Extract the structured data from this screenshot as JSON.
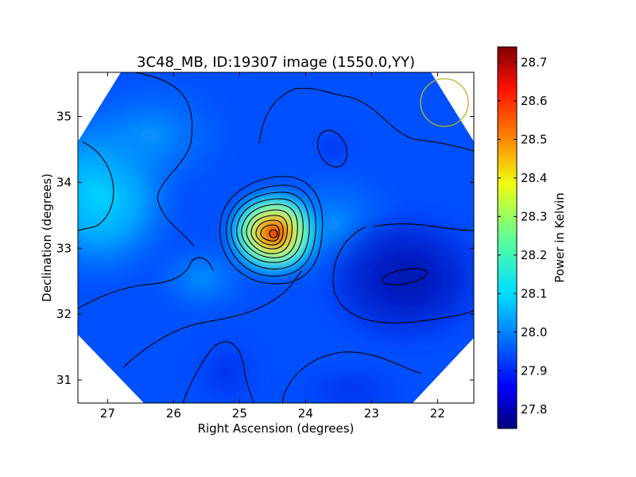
{
  "chart_data": {
    "type": "heatmap",
    "title": "3C48_MB, ID:19307 image (1550.0,YY)",
    "xlabel": "Right Ascension (degrees)",
    "ylabel": "Declination (degrees)",
    "xlim": [
      27.45,
      21.45
    ],
    "ylim": [
      30.65,
      35.67
    ],
    "x_ticks": [
      27,
      26,
      25,
      24,
      23,
      22
    ],
    "x_tick_labels": [
      "27",
      "26",
      "25",
      "24",
      "23",
      "22"
    ],
    "y_ticks": [
      31,
      32,
      33,
      34,
      35
    ],
    "y_tick_labels": [
      "31",
      "32",
      "33",
      "34",
      "35"
    ],
    "colormap": "jet",
    "colorbar": {
      "label": "Power in Kelvin",
      "range": [
        27.75,
        28.74
      ],
      "ticks": [
        27.8,
        27.9,
        28.0,
        28.1,
        28.2,
        28.3,
        28.4,
        28.5,
        28.6,
        28.7
      ],
      "tick_labels": [
        "27.8",
        "27.9",
        "28.0",
        "28.1",
        "28.2",
        "28.3",
        "28.4",
        "28.5",
        "28.6",
        "28.7"
      ]
    },
    "peak": {
      "ra": 24.48,
      "dec": 33.21,
      "value": 28.73
    },
    "beam_circle": {
      "ra": 21.87,
      "dec": 35.22,
      "color": "#b5b528"
    },
    "grid": false
  }
}
